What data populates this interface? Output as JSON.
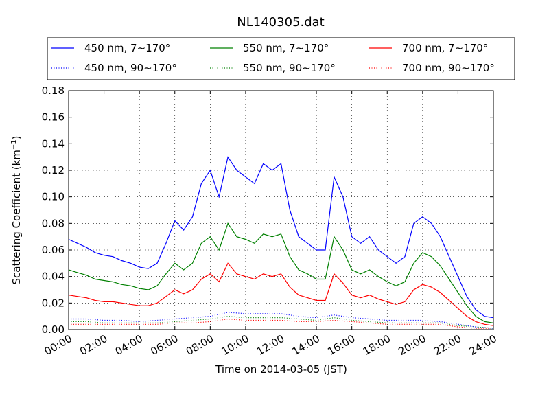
{
  "chart_data": {
    "type": "line",
    "title": "NL140305.dat",
    "xlabel": "Time on 2014-03-05 (JST)",
    "ylabel": "Scattering Coefficient (km",
    "ylabel_sup": "−1",
    "ylabel_suffix": ")",
    "xlim": [
      0,
      24
    ],
    "ylim": [
      0,
      0.18
    ],
    "x_ticks": [
      "00:00",
      "02:00",
      "04:00",
      "06:00",
      "08:00",
      "10:00",
      "12:00",
      "14:00",
      "16:00",
      "18:00",
      "20:00",
      "22:00",
      "24:00"
    ],
    "y_ticks": [
      "0.00",
      "0.02",
      "0.04",
      "0.06",
      "0.08",
      "0.10",
      "0.12",
      "0.14",
      "0.16",
      "0.18"
    ],
    "grid": true,
    "legend_placement": "top",
    "series": [
      {
        "name": "450 nm, 7∼170°",
        "color": "#0000ff",
        "style": "solid",
        "x": [
          0,
          0.5,
          1,
          1.5,
          2,
          2.5,
          3,
          3.5,
          4,
          4.5,
          5,
          5.5,
          6,
          6.5,
          7,
          7.5,
          8,
          8.5,
          9,
          9.5,
          10,
          10.5,
          11,
          11.5,
          12,
          12.5,
          13,
          13.5,
          14,
          14.5,
          15,
          15.5,
          16,
          16.5,
          17,
          17.5,
          18,
          18.5,
          19,
          19.5,
          20,
          20.5,
          21,
          21.5,
          22,
          22.5,
          23,
          23.5,
          24
        ],
        "y": [
          0.068,
          0.065,
          0.062,
          0.058,
          0.056,
          0.055,
          0.052,
          0.05,
          0.047,
          0.046,
          0.05,
          0.065,
          0.082,
          0.075,
          0.085,
          0.11,
          0.12,
          0.1,
          0.13,
          0.12,
          0.115,
          0.11,
          0.125,
          0.12,
          0.125,
          0.09,
          0.07,
          0.065,
          0.06,
          0.06,
          0.115,
          0.1,
          0.07,
          0.065,
          0.07,
          0.06,
          0.055,
          0.05,
          0.055,
          0.08,
          0.085,
          0.08,
          0.07,
          0.055,
          0.04,
          0.025,
          0.015,
          0.01,
          0.009
        ]
      },
      {
        "name": "550 nm, 7∼170°",
        "color": "#008000",
        "style": "solid",
        "x": [
          0,
          0.5,
          1,
          1.5,
          2,
          2.5,
          3,
          3.5,
          4,
          4.5,
          5,
          5.5,
          6,
          6.5,
          7,
          7.5,
          8,
          8.5,
          9,
          9.5,
          10,
          10.5,
          11,
          11.5,
          12,
          12.5,
          13,
          13.5,
          14,
          14.5,
          15,
          15.5,
          16,
          16.5,
          17,
          17.5,
          18,
          18.5,
          19,
          19.5,
          20,
          20.5,
          21,
          21.5,
          22,
          22.5,
          23,
          23.5,
          24
        ],
        "y": [
          0.045,
          0.043,
          0.041,
          0.038,
          0.037,
          0.036,
          0.034,
          0.033,
          0.031,
          0.03,
          0.033,
          0.042,
          0.05,
          0.045,
          0.05,
          0.065,
          0.07,
          0.06,
          0.08,
          0.07,
          0.068,
          0.065,
          0.072,
          0.07,
          0.072,
          0.055,
          0.045,
          0.042,
          0.038,
          0.038,
          0.07,
          0.06,
          0.045,
          0.042,
          0.045,
          0.04,
          0.036,
          0.033,
          0.036,
          0.05,
          0.058,
          0.055,
          0.048,
          0.038,
          0.028,
          0.018,
          0.01,
          0.006,
          0.005
        ]
      },
      {
        "name": "700 nm, 7∼170°",
        "color": "#ff0000",
        "style": "solid",
        "x": [
          0,
          0.5,
          1,
          1.5,
          2,
          2.5,
          3,
          3.5,
          4,
          4.5,
          5,
          5.5,
          6,
          6.5,
          7,
          7.5,
          8,
          8.5,
          9,
          9.5,
          10,
          10.5,
          11,
          11.5,
          12,
          12.5,
          13,
          13.5,
          14,
          14.5,
          15,
          15.5,
          16,
          16.5,
          17,
          17.5,
          18,
          18.5,
          19,
          19.5,
          20,
          20.5,
          21,
          21.5,
          22,
          22.5,
          23,
          23.5,
          24
        ],
        "y": [
          0.026,
          0.025,
          0.024,
          0.022,
          0.021,
          0.021,
          0.02,
          0.019,
          0.018,
          0.018,
          0.02,
          0.025,
          0.03,
          0.027,
          0.03,
          0.038,
          0.042,
          0.036,
          0.05,
          0.042,
          0.04,
          0.038,
          0.042,
          0.04,
          0.042,
          0.032,
          0.026,
          0.024,
          0.022,
          0.022,
          0.042,
          0.035,
          0.026,
          0.024,
          0.026,
          0.023,
          0.021,
          0.019,
          0.021,
          0.03,
          0.034,
          0.032,
          0.028,
          0.022,
          0.016,
          0.01,
          0.006,
          0.004,
          0.003
        ]
      },
      {
        "name": "450 nm, 90∼170°",
        "color": "#0000ff",
        "style": "dotted",
        "x": [
          0,
          1,
          2,
          3,
          4,
          5,
          6,
          7,
          8,
          9,
          10,
          11,
          12,
          13,
          14,
          15,
          16,
          17,
          18,
          19,
          20,
          21,
          22,
          23,
          24
        ],
        "y": [
          0.008,
          0.008,
          0.007,
          0.007,
          0.006,
          0.007,
          0.008,
          0.009,
          0.01,
          0.013,
          0.012,
          0.012,
          0.012,
          0.01,
          0.009,
          0.011,
          0.009,
          0.008,
          0.007,
          0.007,
          0.007,
          0.006,
          0.004,
          0.002,
          0.001
        ]
      },
      {
        "name": "550 nm, 90∼170°",
        "color": "#008000",
        "style": "dotted",
        "x": [
          0,
          1,
          2,
          3,
          4,
          5,
          6,
          7,
          8,
          9,
          10,
          11,
          12,
          13,
          14,
          15,
          16,
          17,
          18,
          19,
          20,
          21,
          22,
          23,
          24
        ],
        "y": [
          0.006,
          0.006,
          0.005,
          0.005,
          0.005,
          0.005,
          0.006,
          0.007,
          0.008,
          0.01,
          0.009,
          0.009,
          0.009,
          0.008,
          0.007,
          0.009,
          0.007,
          0.006,
          0.005,
          0.005,
          0.005,
          0.005,
          0.003,
          0.002,
          0.001
        ]
      },
      {
        "name": "700 nm, 90∼170°",
        "color": "#ff0000",
        "style": "dotted",
        "x": [
          0,
          1,
          2,
          3,
          4,
          5,
          6,
          7,
          8,
          9,
          10,
          11,
          12,
          13,
          14,
          15,
          16,
          17,
          18,
          19,
          20,
          21,
          22,
          23,
          24
        ],
        "y": [
          0.004,
          0.004,
          0.004,
          0.004,
          0.004,
          0.004,
          0.005,
          0.005,
          0.006,
          0.008,
          0.007,
          0.007,
          0.007,
          0.006,
          0.006,
          0.007,
          0.006,
          0.005,
          0.004,
          0.004,
          0.004,
          0.004,
          0.002,
          0.001,
          0.001
        ]
      }
    ]
  }
}
